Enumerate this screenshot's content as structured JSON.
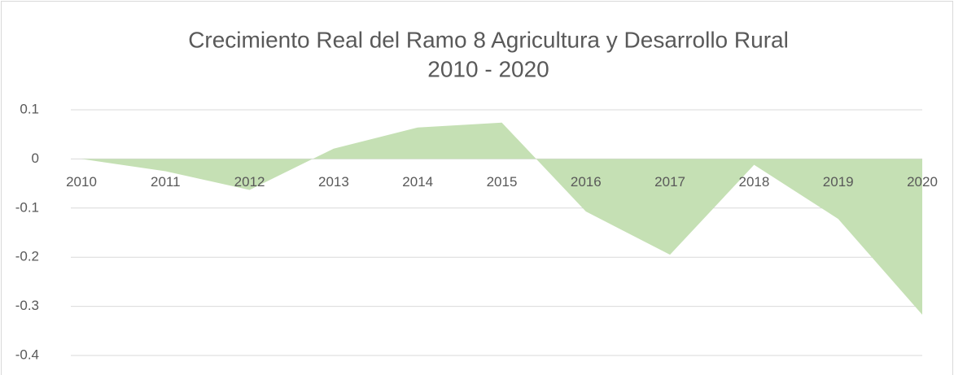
{
  "chart_data": {
    "type": "area",
    "title": "Crecimiento Real del Ramo 8 Agricultura y Desarrollo Rural",
    "subtitle": "2010 - 2020",
    "categories": [
      "2010",
      "2011",
      "2012",
      "2013",
      "2014",
      "2015",
      "2016",
      "2017",
      "2018",
      "2019",
      "2020"
    ],
    "values": [
      0,
      -0.025,
      -0.063,
      0.021,
      0.064,
      0.074,
      -0.107,
      -0.195,
      -0.012,
      -0.122,
      -0.317
    ],
    "color": "#c5e0b4",
    "ylim": [
      -0.4,
      0.1
    ],
    "yticks": [
      0.1,
      0,
      -0.1,
      -0.2,
      -0.3,
      -0.4
    ],
    "grid": true
  }
}
